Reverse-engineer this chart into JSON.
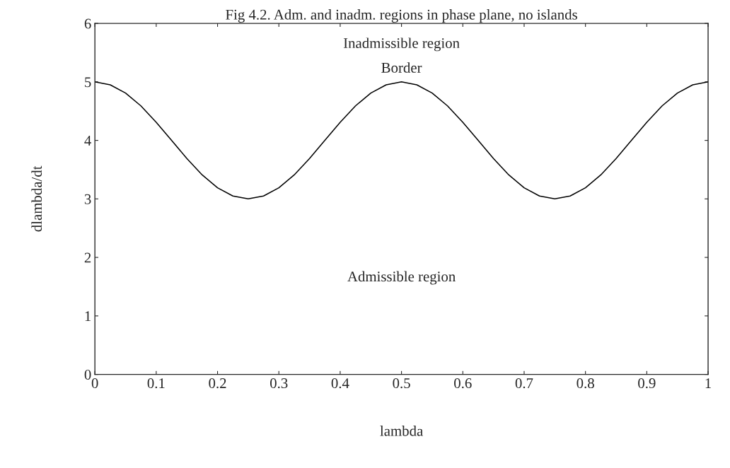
{
  "chart_data": {
    "type": "line",
    "title": "Fig 4.2. Adm. and inadm. regions in phase plane, no islands",
    "xlabel": "lambda",
    "ylabel": "dlambda/dt",
    "x": [
      0,
      0.025,
      0.05,
      0.075,
      0.1,
      0.125,
      0.15,
      0.175,
      0.2,
      0.225,
      0.25,
      0.275,
      0.3,
      0.325,
      0.35,
      0.375,
      0.4,
      0.425,
      0.45,
      0.475,
      0.5,
      0.525,
      0.55,
      0.575,
      0.6,
      0.625,
      0.65,
      0.675,
      0.7,
      0.725,
      0.75,
      0.775,
      0.8,
      0.825,
      0.85,
      0.875,
      0.9,
      0.925,
      0.95,
      0.975,
      1
    ],
    "series": [
      {
        "color": "#000000",
        "values": [
          5,
          4.95,
          4.81,
          4.59,
          4.31,
          4,
          3.69,
          3.41,
          3.19,
          3.05,
          3,
          3.05,
          3.19,
          3.41,
          3.69,
          4,
          4.31,
          4.59,
          4.81,
          4.95,
          5,
          4.95,
          4.81,
          4.59,
          4.31,
          4,
          3.69,
          3.41,
          3.19,
          3.05,
          3,
          3.05,
          3.19,
          3.41,
          3.69,
          4,
          4.31,
          4.59,
          4.81,
          4.95,
          5
        ]
      }
    ],
    "xlim": [
      0,
      1
    ],
    "ylim": [
      0,
      6
    ],
    "xticks": [
      0,
      0.1,
      0.2,
      0.3,
      0.4,
      0.5,
      0.6,
      0.7,
      0.8,
      0.9,
      1
    ],
    "yticks": [
      0,
      1,
      2,
      3,
      4,
      5,
      6
    ],
    "grid": false,
    "marker": "none",
    "line_style": "solid",
    "annotations": [
      "Inadmissible region",
      "Border",
      "Admissible region"
    ]
  }
}
